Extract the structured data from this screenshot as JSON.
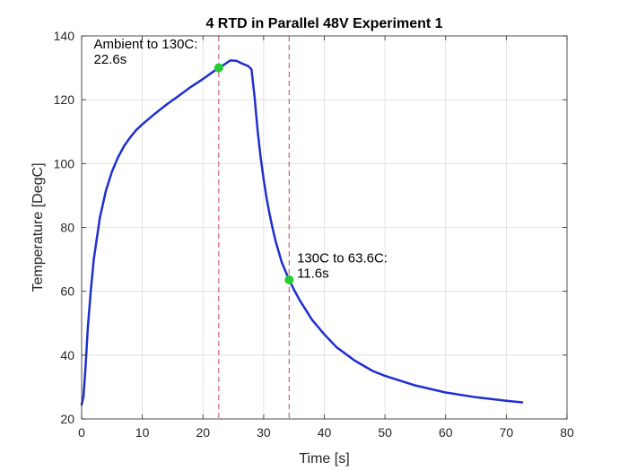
{
  "chart_data": {
    "type": "line",
    "title": "4 RTD in Parallel 48V Experiment 1",
    "xlabel": "Time [s]",
    "ylabel": "Temperature [DegC]",
    "xlim": [
      0,
      80
    ],
    "ylim": [
      20,
      140
    ],
    "xticks": [
      "0",
      "10",
      "20",
      "30",
      "40",
      "50",
      "60",
      "70",
      "80"
    ],
    "yticks": [
      "20",
      "40",
      "60",
      "80",
      "100",
      "120",
      "140"
    ],
    "grid": true,
    "line_color": "#1f2fcf",
    "marker_color": "#22cc33",
    "vline_color": "#c04070",
    "series": [
      {
        "x": [
          0.0,
          0.3,
          0.6,
          1.0,
          1.5,
          2.0,
          3.0,
          4.0,
          5.0,
          6.0,
          7.0,
          8.0,
          9.0,
          10.0,
          12.0,
          14.0,
          16.0,
          18.0,
          20.0,
          22.0,
          22.6,
          23.5,
          24.5,
          25.5,
          26.5,
          27.5,
          28.0,
          28.5,
          29.0,
          29.5,
          30.0,
          30.5,
          31.0,
          31.5,
          32.0,
          33.0,
          34.2,
          35.0,
          36.0,
          38.0,
          40.0,
          42.0,
          45.0,
          48.0,
          50.0,
          55.0,
          60.0,
          65.0,
          70.0,
          72.6
        ],
        "y": [
          24.5,
          27.0,
          35.0,
          48.0,
          60.0,
          70.0,
          83.0,
          91.5,
          97.5,
          102.0,
          105.5,
          108.2,
          110.5,
          112.3,
          115.5,
          118.5,
          121.2,
          124.0,
          126.5,
          129.2,
          130.0,
          131.0,
          132.3,
          132.2,
          131.3,
          130.5,
          129.5,
          121.0,
          110.5,
          102.0,
          95.0,
          89.0,
          84.0,
          79.5,
          75.5,
          69.0,
          63.6,
          60.5,
          57.0,
          51.0,
          46.5,
          42.5,
          38.3,
          35.0,
          33.5,
          30.5,
          28.3,
          26.8,
          25.7,
          25.2
        ]
      }
    ],
    "markers": [
      {
        "x": 22.6,
        "y": 130.0
      },
      {
        "x": 34.2,
        "y": 63.6
      }
    ],
    "vlines": [
      22.6,
      34.2
    ],
    "annotations": [
      {
        "lines": [
          "Ambient to 130C:",
          "22.6s"
        ],
        "x": 2.0,
        "y": 136.0
      },
      {
        "lines": [
          "130C to 63.6C:",
          "11.6s"
        ],
        "x": 35.5,
        "y": 69.0
      }
    ]
  }
}
